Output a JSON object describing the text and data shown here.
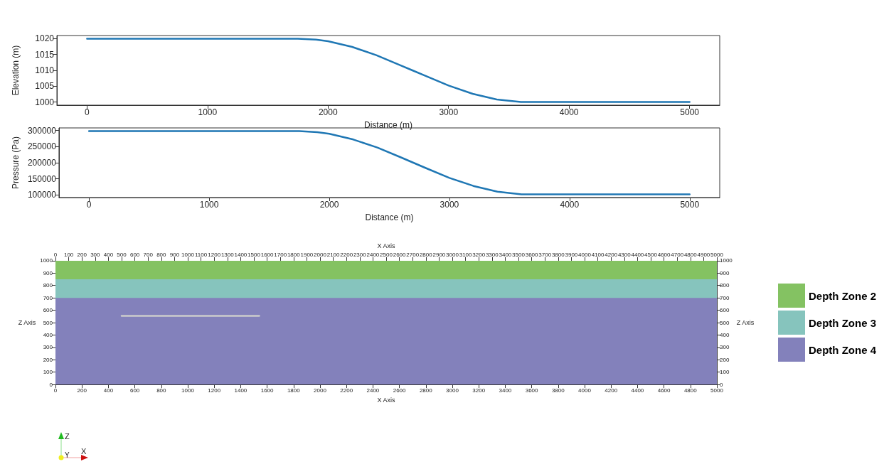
{
  "chart_data": [
    {
      "type": "line",
      "xlabel": "Distance (m)",
      "ylabel": "Elevation (m)",
      "x": [
        0,
        1750,
        1900,
        2000,
        2200,
        2400,
        2600,
        2700,
        2800,
        3000,
        3200,
        3400,
        3600,
        3700,
        5000
      ],
      "series": [
        {
          "color": "#1f77b4",
          "values": [
            1020,
            1020,
            1019.7,
            1019.2,
            1017.4,
            1014.8,
            1011.6,
            1010,
            1008.4,
            1005.2,
            1002.6,
            1000.8,
            1000,
            1000,
            1000
          ]
        }
      ],
      "xlim": [
        -250,
        5250
      ],
      "xticks": [
        0,
        1000,
        2000,
        3000,
        4000,
        5000
      ],
      "ylim": [
        999,
        1021
      ],
      "yticks": [
        1000,
        1005,
        1010,
        1015,
        1020
      ],
      "grid": false,
      "legend": false
    },
    {
      "type": "line",
      "xlabel": "Distance (m)",
      "ylabel": "Pressure (Pa)",
      "x": [
        0,
        1750,
        1900,
        2000,
        2200,
        2400,
        2600,
        2700,
        2800,
        3000,
        3200,
        3400,
        3600,
        3700,
        5000
      ],
      "series": [
        {
          "color": "#1f77b4",
          "values": [
            298000,
            298000,
            295000,
            290000,
            272000,
            247000,
            216000,
            200000,
            184000,
            153000,
            128000,
            110000,
            102000,
            102000,
            102000
          ]
        }
      ],
      "xlim": [
        -250,
        5250
      ],
      "xticks": [
        0,
        1000,
        2000,
        3000,
        4000,
        5000
      ],
      "ylim": [
        92000,
        308000
      ],
      "yticks": [
        100000,
        150000,
        200000,
        250000,
        300000
      ],
      "grid": false,
      "legend": false
    },
    {
      "type": "area",
      "stacked": true,
      "xlabel": "X Axis",
      "x2label": "X Axis",
      "ylabel": "Z Axis",
      "y2label": "Z Axis",
      "legend": "right",
      "grid": false,
      "series": [
        {
          "name": "Depth Zone 4",
          "color": "#8381bb",
          "x": [
            0,
            5000
          ],
          "values": [
            700,
            700
          ]
        },
        {
          "name": "Depth Zone 3",
          "color": "#86c4bd",
          "x": [
            0,
            5000
          ],
          "values": [
            150,
            150
          ]
        },
        {
          "name": "Depth Zone 2",
          "color": "#84c262",
          "x": [
            0,
            5000
          ],
          "values": [
            150,
            150
          ]
        },
        {
          "type": "line",
          "color": "#cccccc",
          "x": [
            500,
            1540
          ],
          "values": [
            555,
            555
          ]
        }
      ],
      "xlim": [
        0,
        5000
      ],
      "xticks": [
        0,
        200,
        400,
        600,
        800,
        1000,
        1200,
        1400,
        1600,
        1800,
        2000,
        2200,
        2400,
        2600,
        2800,
        3000,
        3200,
        3400,
        3600,
        3800,
        4000,
        4200,
        4400,
        4600,
        4800,
        5000
      ],
      "x2lim": [
        0,
        5000
      ],
      "x2ticks": [
        0,
        100,
        200,
        300,
        400,
        500,
        600,
        700,
        800,
        900,
        1000,
        1100,
        1200,
        1300,
        1400,
        1500,
        1600,
        1700,
        1800,
        1900,
        2000,
        2100,
        2200,
        2300,
        2400,
        2500,
        2600,
        2700,
        2800,
        2900,
        3000,
        3100,
        3200,
        3300,
        3400,
        3500,
        3600,
        3700,
        3800,
        3900,
        4000,
        4100,
        4200,
        4300,
        4400,
        4500,
        4600,
        4700,
        4800,
        4900,
        5000
      ],
      "ylim": [
        0,
        1000
      ],
      "yticks": [
        0,
        100,
        200,
        300,
        400,
        500,
        600,
        700,
        800,
        900,
        1000
      ],
      "y2lim": [
        0,
        1000
      ],
      "y2ticks": [
        0,
        100,
        200,
        300,
        400,
        500,
        600,
        700,
        800,
        900,
        1000
      ],
      "annotations": [
        "Z",
        "Y",
        "X"
      ]
    }
  ]
}
